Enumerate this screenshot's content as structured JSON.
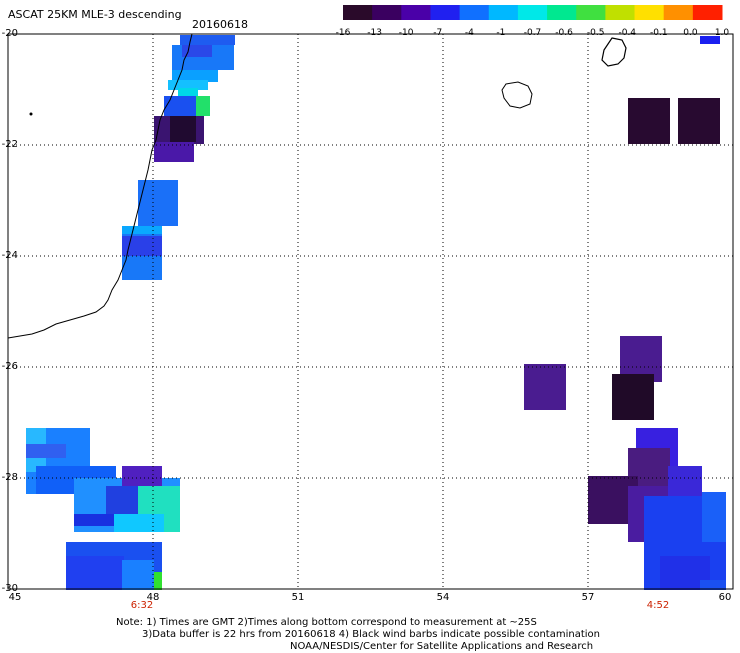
{
  "title": "ASCAT 25KM MLE-3 descending",
  "date": "20160618",
  "colorbar": {
    "labels": [
      "-16",
      "-13",
      "-10",
      "-7",
      "-4",
      "-1",
      "-0.7",
      "-0.6",
      "-0.5",
      "-0.4",
      "-0.1",
      "0.0",
      "1.0"
    ],
    "colors": [
      "#2a0a2a",
      "#3a0060",
      "#4a00a8",
      "#2020f0",
      "#1070ff",
      "#00b8ff",
      "#00e8e8",
      "#00e890",
      "#40e040",
      "#c0e000",
      "#ffe000",
      "#ff9000",
      "#ff2000"
    ]
  },
  "axes": {
    "y_ticks": [
      "-20",
      "-22",
      "-24",
      "-26",
      "-28",
      "-30"
    ],
    "x_ticks": [
      "45",
      "48",
      "51",
      "54",
      "57",
      "60"
    ]
  },
  "times": [
    "6:32",
    "4:52"
  ],
  "note": {
    "line1": "Note: 1) Times are GMT 2)Times along bottom correspond to measurement at ~25S",
    "line2": "3)Data buffer is 22 hrs from 20160618 4) Black wind barbs indicate possible contamination",
    "line3": "NOAA/NESDIS/Center for Satellite Applications and Research"
  }
}
